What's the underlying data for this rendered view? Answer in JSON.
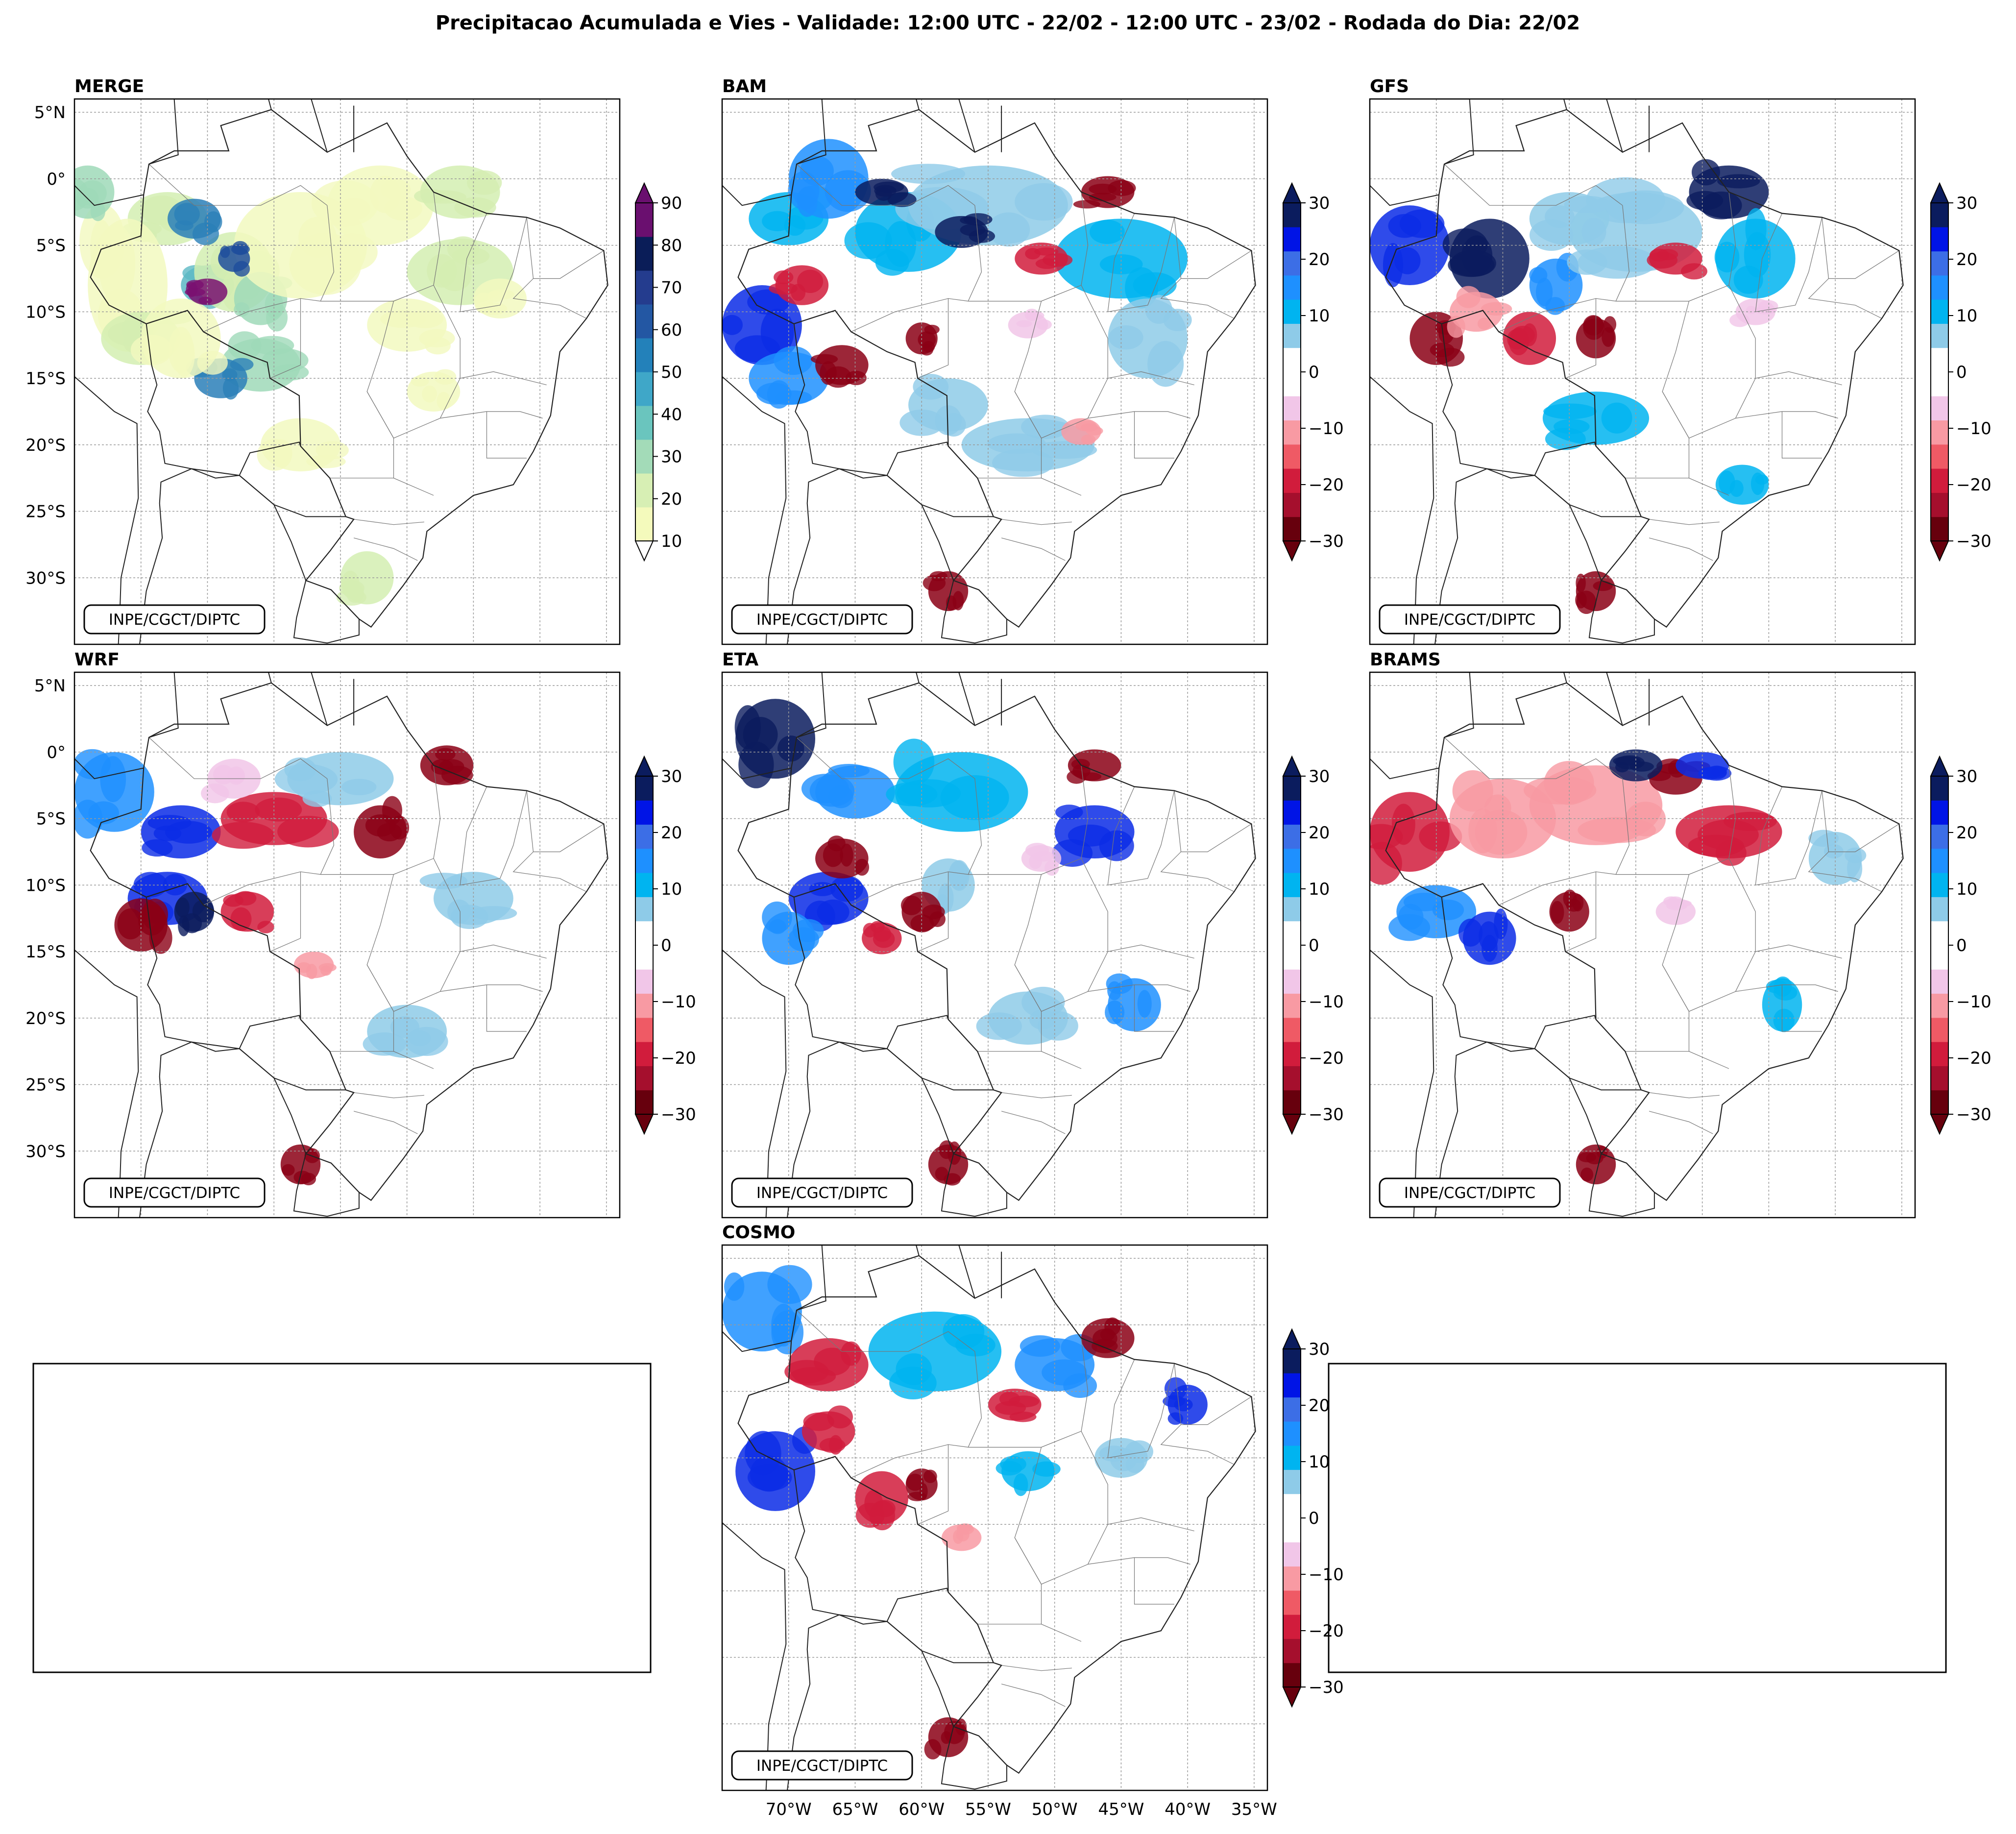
{
  "title": "Precipitacao Acumulada e Vies - Validade: 12:00 UTC - 22/02 - 12:00 UTC - 23/02 - Rodada do Dia: 22/02",
  "credit": "INPE/CGCT/DIPTC",
  "lat_labels": [
    "5°N",
    "0°",
    "5°S",
    "10°S",
    "15°S",
    "20°S",
    "25°S",
    "30°S"
  ],
  "lon_labels": [
    "70°W",
    "65°W",
    "60°W",
    "55°W",
    "50°W",
    "45°W",
    "40°W",
    "35°W"
  ],
  "panels": [
    {
      "id": "merge",
      "title": "MERGE",
      "type": "precip"
    },
    {
      "id": "bam",
      "title": "BAM",
      "type": "bias"
    },
    {
      "id": "gfs",
      "title": "GFS",
      "type": "bias"
    },
    {
      "id": "wrf",
      "title": "WRF",
      "type": "bias"
    },
    {
      "id": "eta",
      "title": "ETA",
      "type": "bias"
    },
    {
      "id": "brams",
      "title": "BRAMS",
      "type": "bias"
    },
    {
      "id": "cosmo",
      "title": "COSMO",
      "type": "bias"
    }
  ],
  "colorbars": {
    "precip": {
      "labels": [
        "90",
        "80",
        "70",
        "60",
        "50",
        "40",
        "30",
        "20",
        "10"
      ],
      "colors": [
        "#f4fabc",
        "#d7efb4",
        "#a3dbb8",
        "#6ac5be",
        "#3fa7c8",
        "#2381ba",
        "#2357a3",
        "#243c8e",
        "#0a1d58",
        "#6a0f6f"
      ]
    },
    "bias": {
      "labels": [
        "30",
        "20",
        "10",
        "0",
        "−10",
        "−20",
        "−30"
      ],
      "colors": [
        "#67000d",
        "#a50f2d",
        "#d11c3c",
        "#ef5a65",
        "#f89aa3",
        "#f1c6e8",
        "#ffffff",
        "#ffffff",
        "#8ecbe8",
        "#00b4f0",
        "#1e90ff",
        "#3c6ee6",
        "#0014e6",
        "#0b1c5e"
      ]
    }
  },
  "map_fields": {
    "merge": [
      [
        -68,
        -3,
        3,
        2,
        "g2"
      ],
      [
        -71,
        -8,
        3,
        5,
        "g1"
      ],
      [
        -70,
        -12,
        3,
        2,
        "g2"
      ],
      [
        -65,
        -8,
        2,
        1.5,
        "g4"
      ],
      [
        -63,
        -7,
        3,
        3,
        "g2"
      ],
      [
        -61,
        -9,
        2,
        2,
        "g3"
      ],
      [
        -58,
        -5,
        5,
        4,
        "g1"
      ],
      [
        -52,
        -2,
        4,
        3,
        "g1"
      ],
      [
        -46,
        -7,
        4,
        2.5,
        "g2"
      ],
      [
        -43,
        -9,
        2,
        1.5,
        "g1"
      ],
      [
        -61,
        -14,
        3,
        2,
        "g3"
      ],
      [
        -64,
        -15,
        2,
        1.5,
        "g5"
      ],
      [
        -67,
        -12,
        3,
        3,
        "g1"
      ],
      [
        -46,
        -1,
        3,
        2,
        "g2"
      ],
      [
        -50,
        -11,
        3,
        2,
        "g1"
      ],
      [
        -48,
        -16,
        2,
        1.5,
        "g1"
      ],
      [
        -58,
        -20,
        3,
        2,
        "g1"
      ],
      [
        -53,
        -30,
        2,
        2,
        "g2"
      ],
      [
        -74,
        -1,
        2,
        2,
        "g3"
      ],
      [
        -66,
        -3,
        2,
        1.5,
        "g5"
      ],
      [
        -63,
        -6,
        1.2,
        1,
        "g6"
      ],
      [
        -65,
        -8.5,
        1.5,
        1,
        "purple"
      ]
    ],
    "bam": [
      [
        -70,
        -3,
        3,
        2,
        "b2"
      ],
      [
        -67,
        0,
        3,
        3,
        "b3"
      ],
      [
        -61,
        -4,
        4,
        3,
        "b2"
      ],
      [
        -55,
        -2,
        6,
        3,
        "b1"
      ],
      [
        -45,
        -6,
        5,
        3,
        "b2"
      ],
      [
        -43,
        -12,
        3,
        3,
        "b1"
      ],
      [
        -72,
        -11,
        3,
        3,
        "b4"
      ],
      [
        -70,
        -15,
        3,
        2,
        "b3"
      ],
      [
        -58,
        -17,
        3,
        2,
        "b1"
      ],
      [
        -52,
        -20,
        5,
        2,
        "b1"
      ],
      [
        -69,
        -8,
        2,
        1.5,
        "r3"
      ],
      [
        -66,
        -14,
        2,
        1.5,
        "r4"
      ],
      [
        -60,
        -12,
        1.2,
        1.2,
        "r4"
      ],
      [
        -51,
        -6,
        2,
        1.2,
        "r3"
      ],
      [
        -46,
        -1,
        2,
        1.2,
        "r4"
      ],
      [
        -58,
        -31,
        1.5,
        1.5,
        "r4"
      ],
      [
        -48,
        -19,
        1.5,
        1,
        "r2"
      ],
      [
        -57,
        -4,
        2,
        1.2,
        "b5"
      ],
      [
        -63,
        -1,
        2,
        1,
        "b5"
      ],
      [
        -52,
        -11,
        1.5,
        1,
        "r1"
      ]
    ],
    "gfs": [
      [
        -72,
        -5,
        3,
        3,
        "b4"
      ],
      [
        -66,
        -6,
        3,
        3,
        "b5"
      ],
      [
        -61,
        -8,
        2,
        2,
        "b3"
      ],
      [
        -55,
        -4,
        5,
        3,
        "b1"
      ],
      [
        -48,
        -1,
        3,
        2,
        "b5"
      ],
      [
        -46,
        -6,
        3,
        3,
        "b2"
      ],
      [
        -58,
        -18,
        4,
        2,
        "b2"
      ],
      [
        -47,
        -23,
        2,
        1.5,
        "b2"
      ],
      [
        -70,
        -12,
        2,
        2,
        "r4"
      ],
      [
        -63,
        -12,
        2,
        2,
        "r3"
      ],
      [
        -58,
        -12,
        1.5,
        1.5,
        "r4"
      ],
      [
        -52,
        -6,
        2,
        1.2,
        "r3"
      ],
      [
        -46,
        -10,
        1.5,
        1,
        "r1"
      ],
      [
        -58,
        -31,
        1.5,
        1.5,
        "r4"
      ],
      [
        -67,
        -10,
        2,
        1.5,
        "r2"
      ],
      [
        -60,
        -3,
        3,
        2,
        "b1"
      ]
    ],
    "wrf": [
      [
        -72,
        -3,
        3,
        3,
        "b3"
      ],
      [
        -67,
        -6,
        3,
        2,
        "b4"
      ],
      [
        -60,
        -5,
        4,
        2,
        "r3"
      ],
      [
        -52,
        -6,
        2,
        2,
        "r4"
      ],
      [
        -47,
        -1,
        2,
        1.5,
        "r4"
      ],
      [
        -68,
        -11,
        3,
        2,
        "b4"
      ],
      [
        -70,
        -13,
        2,
        2,
        "r4"
      ],
      [
        -62,
        -12,
        2,
        1.5,
        "r3"
      ],
      [
        -57,
        -16,
        1.5,
        1,
        "r2"
      ],
      [
        -58,
        -31,
        1.5,
        1.5,
        "r4"
      ],
      [
        -50,
        -21,
        3,
        2,
        "b1"
      ],
      [
        -45,
        -11,
        3,
        2,
        "b1"
      ],
      [
        -55,
        -2,
        4,
        2,
        "b1"
      ],
      [
        -66,
        -12,
        1.5,
        1.5,
        "b5"
      ],
      [
        -63,
        -2,
        2,
        1.5,
        "r1"
      ]
    ],
    "eta": [
      [
        -71,
        1,
        3,
        3,
        "b5"
      ],
      [
        -65,
        -3,
        3,
        2,
        "b3"
      ],
      [
        -57,
        -3,
        5,
        3,
        "b2"
      ],
      [
        -47,
        -6,
        3,
        2,
        "b4"
      ],
      [
        -67,
        -11,
        3,
        2,
        "b4"
      ],
      [
        -70,
        -14,
        2,
        2,
        "b3"
      ],
      [
        -58,
        -10,
        2,
        2,
        "b1"
      ],
      [
        -52,
        -20,
        3,
        2,
        "b1"
      ],
      [
        -44,
        -19,
        2,
        2,
        "b3"
      ],
      [
        -66,
        -8,
        2,
        1.5,
        "r4"
      ],
      [
        -60,
        -12,
        1.5,
        1.5,
        "r4"
      ],
      [
        -63,
        -14,
        1.5,
        1.2,
        "r3"
      ],
      [
        -58,
        -31,
        1.5,
        1.5,
        "r4"
      ],
      [
        -51,
        -8,
        1.5,
        1,
        "r1"
      ],
      [
        -47,
        -1,
        2,
        1.2,
        "r4"
      ]
    ],
    "brams": [
      [
        -72,
        -6,
        3,
        3,
        "r3"
      ],
      [
        -65,
        -5,
        4,
        3,
        "r2"
      ],
      [
        -58,
        -4,
        5,
        3,
        "r2"
      ],
      [
        -48,
        -6,
        4,
        2,
        "r3"
      ],
      [
        -52,
        -2,
        2,
        1.2,
        "r4"
      ],
      [
        -70,
        -12,
        3,
        2,
        "b3"
      ],
      [
        -66,
        -14,
        2,
        2,
        "b4"
      ],
      [
        -60,
        -12,
        1.5,
        1.5,
        "r4"
      ],
      [
        -55,
        -1,
        2,
        1.2,
        "b5"
      ],
      [
        -50,
        -1,
        2,
        1,
        "b4"
      ],
      [
        -44,
        -19,
        1.5,
        2,
        "b2"
      ],
      [
        -58,
        -31,
        1.5,
        1.5,
        "r4"
      ],
      [
        -52,
        -12,
        1.5,
        1,
        "r1"
      ],
      [
        -40,
        -8,
        2,
        2,
        "b1"
      ]
    ],
    "cosmo": [
      [
        -72,
        1,
        3,
        3,
        "b3"
      ],
      [
        -67,
        -3,
        3,
        2,
        "r3"
      ],
      [
        -59,
        -2,
        5,
        3,
        "b2"
      ],
      [
        -50,
        -3,
        3,
        2,
        "b3"
      ],
      [
        -46,
        -1,
        2,
        1.5,
        "r4"
      ],
      [
        -71,
        -11,
        3,
        3,
        "b4"
      ],
      [
        -67,
        -8,
        2,
        1.5,
        "r3"
      ],
      [
        -63,
        -13,
        2,
        2,
        "r3"
      ],
      [
        -60,
        -12,
        1.2,
        1.2,
        "r4"
      ],
      [
        -53,
        -6,
        2,
        1.2,
        "r3"
      ],
      [
        -52,
        -11,
        2,
        1.5,
        "b2"
      ],
      [
        -45,
        -10,
        2,
        1.5,
        "b1"
      ],
      [
        -58,
        -31,
        1.5,
        1.5,
        "r4"
      ],
      [
        -57,
        -16,
        1.5,
        1,
        "r2"
      ],
      [
        -40,
        -6,
        1.5,
        1.5,
        "b4"
      ]
    ]
  }
}
